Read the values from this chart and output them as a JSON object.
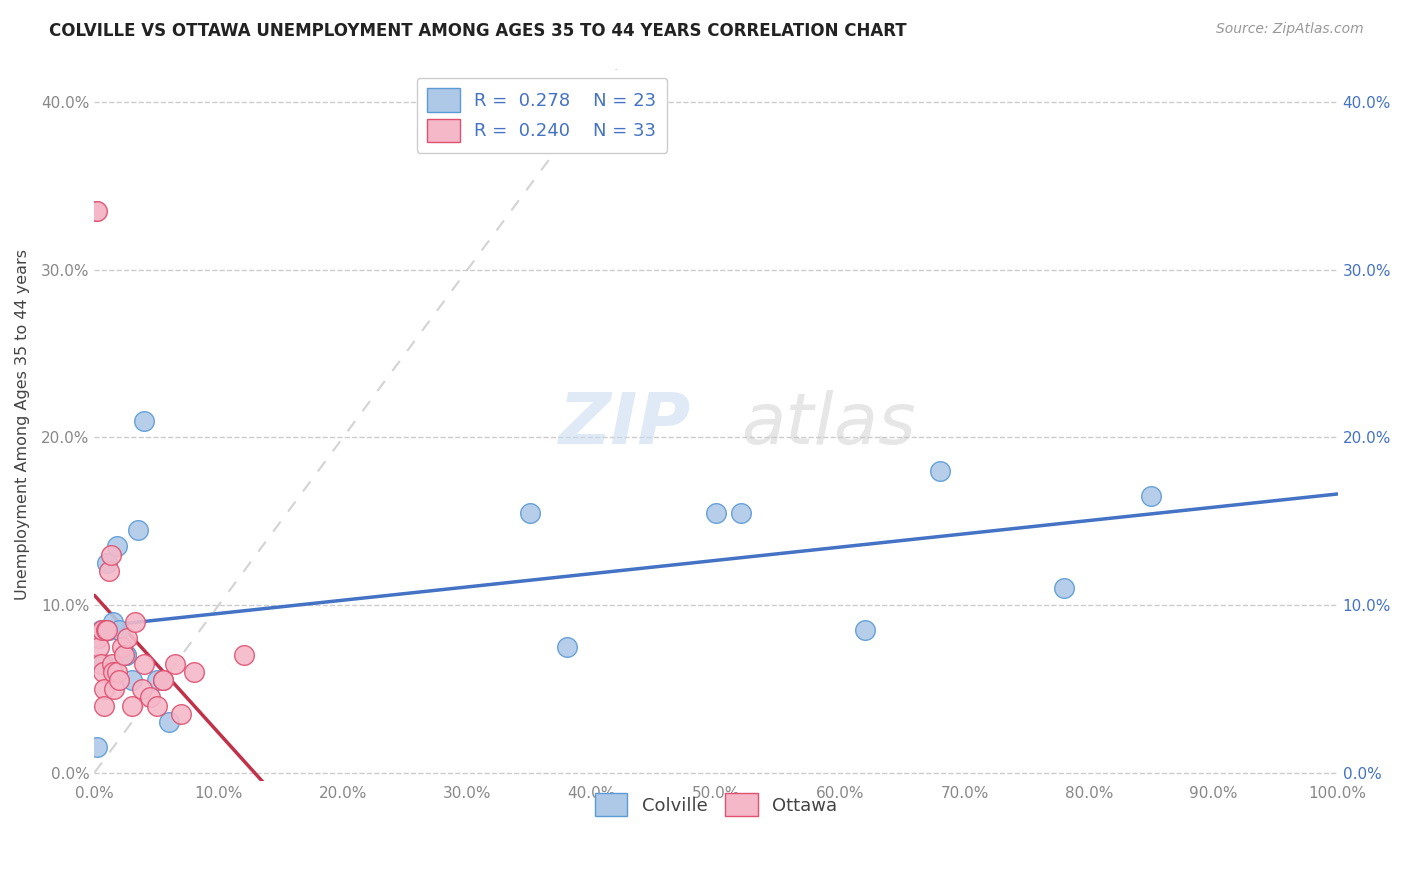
{
  "title": "COLVILLE VS OTTAWA UNEMPLOYMENT AMONG AGES 35 TO 44 YEARS CORRELATION CHART",
  "source": "Source: ZipAtlas.com",
  "ylabel": "Unemployment Among Ages 35 to 44 years",
  "xlim": [
    0,
    1.0
  ],
  "ylim": [
    -0.005,
    0.42
  ],
  "colville_color": "#aec9e8",
  "colville_edge_color": "#5b9bd5",
  "ottawa_color": "#f4b8c8",
  "ottawa_edge_color": "#e05070",
  "trend_colville_color": "#4472c4",
  "trend_ottawa_color": "#c0314a",
  "diagonal_color": "#c8c8c8",
  "colville_R": 0.278,
  "colville_N": 23,
  "ottawa_R": 0.24,
  "ottawa_N": 33,
  "colville_x": [
    0.002,
    0.005,
    0.008,
    0.01,
    0.012,
    0.015,
    0.018,
    0.02,
    0.025,
    0.025,
    0.03,
    0.035,
    0.04,
    0.05,
    0.06,
    0.35,
    0.38,
    0.5,
    0.52,
    0.62,
    0.68,
    0.78,
    0.85
  ],
  "colville_y": [
    0.015,
    0.085,
    0.065,
    0.125,
    0.085,
    0.09,
    0.135,
    0.085,
    0.07,
    0.07,
    0.055,
    0.145,
    0.21,
    0.055,
    0.03,
    0.155,
    0.075,
    0.155,
    0.155,
    0.085,
    0.18,
    0.11,
    0.165
  ],
  "ottawa_x": [
    0.001,
    0.002,
    0.003,
    0.004,
    0.005,
    0.006,
    0.007,
    0.008,
    0.008,
    0.009,
    0.01,
    0.012,
    0.013,
    0.014,
    0.015,
    0.016,
    0.018,
    0.02,
    0.022,
    0.024,
    0.026,
    0.03,
    0.033,
    0.038,
    0.04,
    0.045,
    0.05,
    0.055,
    0.055,
    0.065,
    0.07,
    0.08,
    0.12
  ],
  "ottawa_y": [
    0.335,
    0.335,
    0.08,
    0.075,
    0.065,
    0.085,
    0.06,
    0.05,
    0.04,
    0.085,
    0.085,
    0.12,
    0.13,
    0.065,
    0.06,
    0.05,
    0.06,
    0.055,
    0.075,
    0.07,
    0.08,
    0.04,
    0.09,
    0.05,
    0.065,
    0.045,
    0.04,
    0.055,
    0.055,
    0.065,
    0.035,
    0.06,
    0.07
  ],
  "watermark_zip": "ZIP",
  "watermark_atlas": "atlas",
  "background_color": "#ffffff",
  "grid_color": "#cccccc",
  "tick_label_color_left": "#888888",
  "tick_label_color_right": "#4472c4",
  "tick_label_color_bottom": "#888888"
}
